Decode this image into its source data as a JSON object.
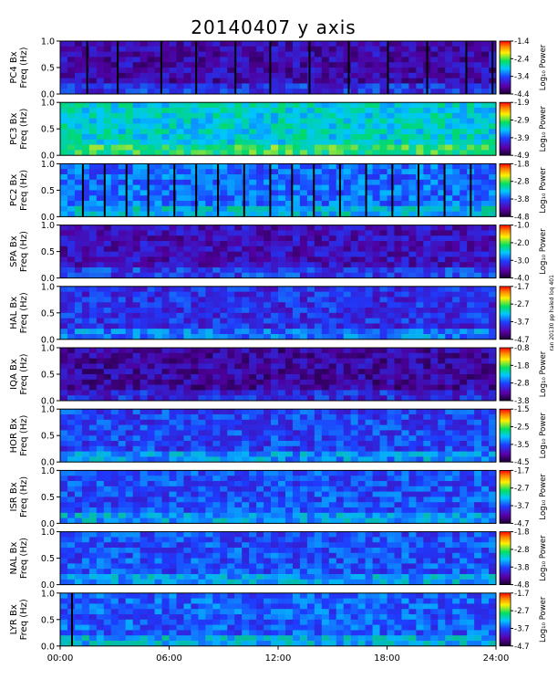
{
  "title": "20140407 y axis",
  "chart_data": {
    "type": "heatmap",
    "title": "20140407 y axis",
    "x_axis": {
      "range": [
        "00:00",
        "24:00"
      ],
      "ticks": [
        "00:00",
        "06:00",
        "12:00",
        "18:00",
        "24:00"
      ],
      "xlabel": ""
    },
    "colorbar_label": "Log₁₀ Power",
    "colormap": "rainbow (purple → blue → cyan → green → yellow → red)",
    "panels": [
      {
        "station": "PC4",
        "ylabel_top": "PC4 Bx",
        "ylabel_bottom": "Freq (Hz)",
        "ylim": [
          0,
          1.0
        ],
        "yticks": [
          "0.0",
          "0.5",
          "1.0"
        ],
        "colorbar_ticks": [
          "-1.4",
          "-2.4",
          "-3.4",
          "-4.4"
        ],
        "colorbar_range": [
          -4.4,
          -1.4
        ]
      },
      {
        "station": "PC3",
        "ylabel_top": "PC3 Bx",
        "ylabel_bottom": "Freq (Hz)",
        "ylim": [
          0,
          1.0
        ],
        "yticks": [
          "0.0",
          "0.5",
          "1.0"
        ],
        "colorbar_ticks": [
          "-1.9",
          "-2.9",
          "-3.9",
          "-4.9"
        ],
        "colorbar_range": [
          -4.9,
          -1.9
        ]
      },
      {
        "station": "PC2",
        "ylabel_top": "PC2 Bx",
        "ylabel_bottom": "Freq (Hz)",
        "ylim": [
          0,
          1.0
        ],
        "yticks": [
          "0.0",
          "0.5",
          "1.0"
        ],
        "colorbar_ticks": [
          "-1.8",
          "-2.8",
          "-3.8",
          "-4.8"
        ],
        "colorbar_range": [
          -4.8,
          -1.8
        ]
      },
      {
        "station": "SPA",
        "ylabel_top": "SPA Bx",
        "ylabel_bottom": "Freq (Hz)",
        "ylim": [
          0,
          1.0
        ],
        "yticks": [
          "0.0",
          "0.5",
          "1.0"
        ],
        "colorbar_ticks": [
          "-1.0",
          "-2.0",
          "-3.0",
          "-4.0"
        ],
        "colorbar_range": [
          -4.0,
          -1.0
        ]
      },
      {
        "station": "HAL",
        "ylabel_top": "HAL Bx",
        "ylabel_bottom": "Freq (Hz)",
        "ylim": [
          0,
          1.0
        ],
        "yticks": [
          "0.0",
          "0.5",
          "1.0"
        ],
        "colorbar_ticks": [
          "-1.7",
          "-2.7",
          "-3.7",
          "-4.7"
        ],
        "colorbar_range": [
          -4.7,
          -1.7
        ],
        "colorbar_note": "ran 20130 pp haled loq 401"
      },
      {
        "station": "IQA",
        "ylabel_top": "IQA Bx",
        "ylabel_bottom": "Freq (Hz)",
        "ylim": [
          0,
          1.0
        ],
        "yticks": [
          "0.0",
          "0.5",
          "1.0"
        ],
        "colorbar_ticks": [
          "-0.8",
          "-1.8",
          "-2.8",
          "-3.8"
        ],
        "colorbar_range": [
          -3.8,
          -0.8
        ]
      },
      {
        "station": "HOR",
        "ylabel_top": "HOR Bx",
        "ylabel_bottom": "Freq (Hz)",
        "ylim": [
          0,
          1.0
        ],
        "yticks": [
          "0.0",
          "0.5",
          "1.0"
        ],
        "colorbar_ticks": [
          "-1.5",
          "-2.5",
          "-3.5",
          "-4.5"
        ],
        "colorbar_range": [
          -4.5,
          -1.5
        ]
      },
      {
        "station": "ISR",
        "ylabel_top": "ISR Bx",
        "ylabel_bottom": "Freq (Hz)",
        "ylim": [
          0,
          1.0
        ],
        "yticks": [
          "0.0",
          "0.5",
          "1.0"
        ],
        "colorbar_ticks": [
          "-1.7",
          "-2.7",
          "-3.7",
          "-4.7"
        ],
        "colorbar_range": [
          -4.7,
          -1.7
        ]
      },
      {
        "station": "NAL",
        "ylabel_top": "NAL Bx",
        "ylabel_bottom": "Freq (Hz)",
        "ylim": [
          0,
          1.0
        ],
        "yticks": [
          "0.0",
          "0.5",
          "1.0"
        ],
        "colorbar_ticks": [
          "-1.8",
          "-2.8",
          "-3.8",
          "-4.8"
        ],
        "colorbar_range": [
          -4.8,
          -1.8
        ]
      },
      {
        "station": "LYR",
        "ylabel_top": "LYR Bx",
        "ylabel_bottom": "Freq (Hz)",
        "ylim": [
          0,
          1.0
        ],
        "yticks": [
          "0.0",
          "0.5",
          "1.0"
        ],
        "colorbar_ticks": [
          "-1.7",
          "-2.7",
          "-3.7",
          "-4.7"
        ],
        "colorbar_range": [
          -4.7,
          -1.7
        ]
      }
    ]
  }
}
